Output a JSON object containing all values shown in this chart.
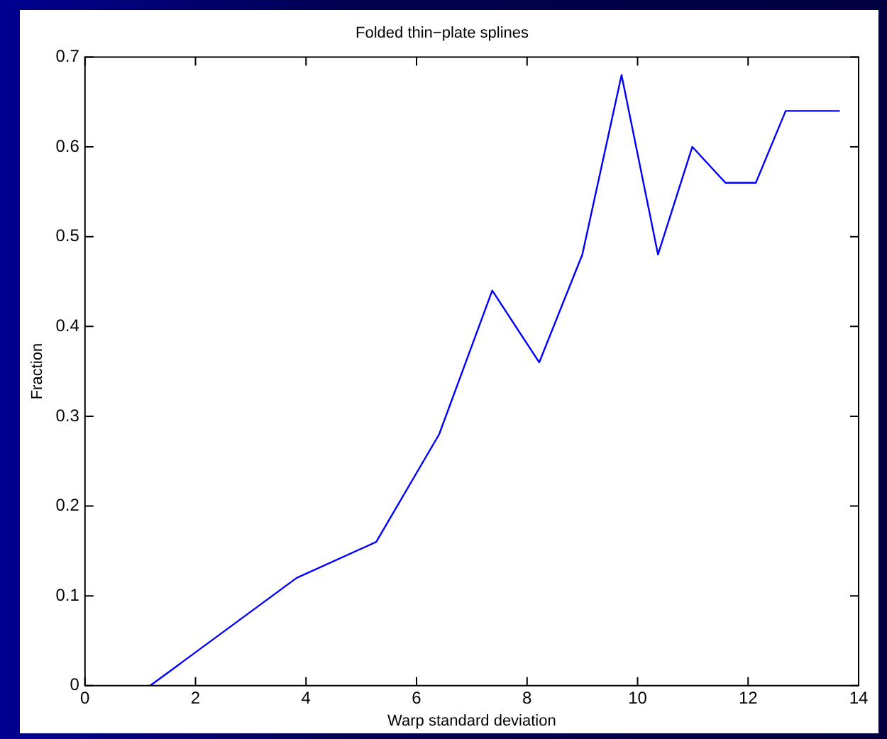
{
  "chart_data": {
    "type": "line",
    "title": "Folded thin−plate splines",
    "xlabel": "Warp standard deviation",
    "ylabel": "Fraction",
    "x": [
      1.18,
      3.83,
      5.27,
      6.41,
      7.37,
      8.22,
      9.0,
      9.71,
      10.37,
      10.99,
      11.59,
      12.14,
      12.68,
      13.66
    ],
    "series": [
      {
        "color": "#0000ff",
        "values": [
          0,
          0.12,
          0.16,
          0.28,
          0.44,
          0.36,
          0.48,
          0.68,
          0.48,
          0.6,
          0.56,
          0.56,
          0.64,
          0.64
        ]
      }
    ],
    "xlim": [
      0,
      14
    ],
    "xticks": [
      0,
      2,
      4,
      6,
      8,
      10,
      12,
      14
    ],
    "ylim": [
      0,
      0.7
    ],
    "yticks": [
      0,
      0.1,
      0.2,
      0.3,
      0.4,
      0.5,
      0.6,
      0.7
    ],
    "grid": false,
    "legend": false,
    "marker": "none",
    "line_style": "solid"
  }
}
